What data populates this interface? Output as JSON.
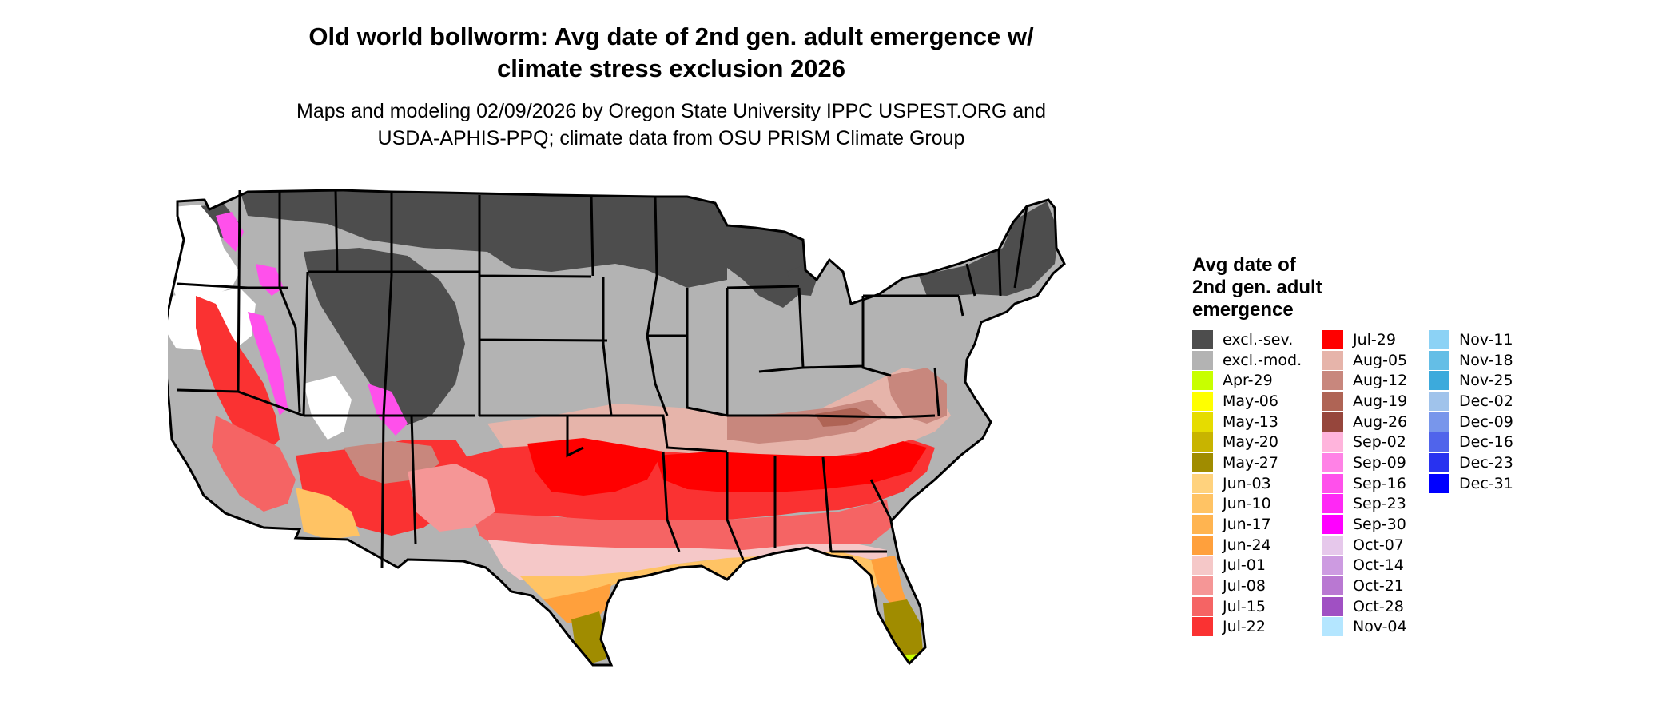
{
  "title": {
    "line1": "Old world bollworm: Avg date of 2nd gen. adult emergence w/",
    "line2": "climate stress exclusion 2026"
  },
  "subtitle": {
    "line1": "Maps and modeling 02/09/2026 by Oregon State University IPPC USPEST.ORG and",
    "line2": "USDA-APHIS-PPQ; climate data from OSU PRISM Climate Group"
  },
  "legend": {
    "title_lines": [
      "Avg date of",
      "2nd gen. adult",
      "emergence"
    ],
    "columns": [
      [
        {
          "label": "excl.-sev.",
          "color": "#4d4d4d"
        },
        {
          "label": "excl.-mod.",
          "color": "#b3b3b3"
        },
        {
          "label": "Apr-29",
          "color": "#c8ff00"
        },
        {
          "label": "May-06",
          "color": "#ffff00"
        },
        {
          "label": "May-13",
          "color": "#e6dc00"
        },
        {
          "label": "May-20",
          "color": "#c8b400"
        },
        {
          "label": "May-27",
          "color": "#a08c00"
        },
        {
          "label": "Jun-03",
          "color": "#ffd27d"
        },
        {
          "label": "Jun-10",
          "color": "#ffc364"
        },
        {
          "label": "Jun-17",
          "color": "#ffb450"
        },
        {
          "label": "Jun-24",
          "color": "#ffa03c"
        },
        {
          "label": "Jul-01",
          "color": "#f5c8c8"
        },
        {
          "label": "Jul-08",
          "color": "#f59696"
        },
        {
          "label": "Jul-15",
          "color": "#f56464"
        },
        {
          "label": "Jul-22",
          "color": "#fa3232"
        }
      ],
      [
        {
          "label": "Jul-29",
          "color": "#ff0000"
        },
        {
          "label": "Aug-05",
          "color": "#e6b4aa"
        },
        {
          "label": "Aug-12",
          "color": "#c8877d"
        },
        {
          "label": "Aug-19",
          "color": "#af6455"
        },
        {
          "label": "Aug-26",
          "color": "#96463c"
        },
        {
          "label": "Sep-02",
          "color": "#ffb4dc"
        },
        {
          "label": "Sep-09",
          "color": "#ff82e6"
        },
        {
          "label": "Sep-16",
          "color": "#ff50eb"
        },
        {
          "label": "Sep-23",
          "color": "#ff28f5"
        },
        {
          "label": "Sep-30",
          "color": "#ff00ff"
        },
        {
          "label": "Oct-07",
          "color": "#e6c8eb"
        },
        {
          "label": "Oct-14",
          "color": "#cd9be1"
        },
        {
          "label": "Oct-21",
          "color": "#b978d2"
        },
        {
          "label": "Oct-28",
          "color": "#a050c3"
        },
        {
          "label": "Nov-04",
          "color": "#b4e6ff"
        }
      ],
      [
        {
          "label": "Nov-11",
          "color": "#8cd2f5"
        },
        {
          "label": "Nov-18",
          "color": "#64bee6"
        },
        {
          "label": "Nov-25",
          "color": "#3caadc"
        },
        {
          "label": "Dec-02",
          "color": "#a0c3eb"
        },
        {
          "label": "Dec-09",
          "color": "#7896eb"
        },
        {
          "label": "Dec-16",
          "color": "#5064eb"
        },
        {
          "label": "Dec-23",
          "color": "#2832f0"
        },
        {
          "label": "Dec-31",
          "color": "#0000ff"
        }
      ]
    ]
  },
  "colors": {
    "severe": "#4d4d4d",
    "moderate": "#b3b3b3",
    "pink_early": "#f5c8c8",
    "rose": "#f59696",
    "red_light": "#f56464",
    "red": "#fa3232",
    "red_deep": "#ff0000",
    "brown_light": "#e6b4aa",
    "brown": "#c8877d",
    "brown_dark": "#af6455",
    "orange_light": "#ffc364",
    "orange": "#ffa03c",
    "olive": "#a08c00",
    "olive_light": "#c8b400",
    "yellow_green": "#c8ff00",
    "magenta": "#ff50eb",
    "white": "#ffffff",
    "boundary": "#000000"
  }
}
